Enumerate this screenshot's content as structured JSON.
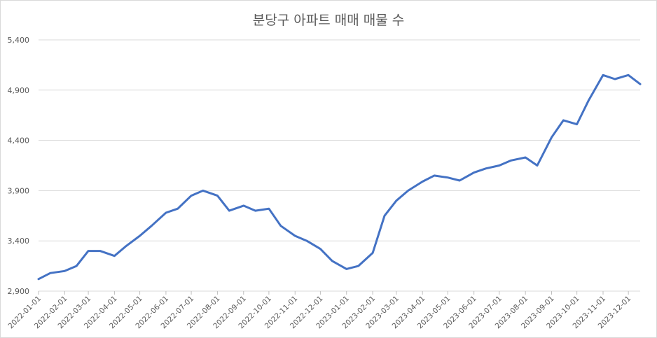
{
  "chart_data": {
    "type": "line",
    "title": "분당구 아파트 매매 매물 수",
    "xlabel": "",
    "ylabel": "",
    "ylim": [
      2900,
      5400
    ],
    "yticks": [
      "2,900",
      "3,400",
      "3,900",
      "4,400",
      "4,900",
      "5,400"
    ],
    "ytick_values": [
      2900,
      3400,
      3900,
      4400,
      4900,
      5400
    ],
    "grid": "horizontal",
    "legend": "none",
    "line_color": "#4472c4",
    "x_range": [
      "2022-01-01",
      "2023-12-15"
    ],
    "xticks": [
      "2022-01-01",
      "2022-02-01",
      "2022-03-01",
      "2022-04-01",
      "2022-05-01",
      "2022-06-01",
      "2022-07-01",
      "2022-08-01",
      "2022-09-01",
      "2022-10-01",
      "2022-11-01",
      "2022-12-01",
      "2023-01-01",
      "2023-02-01",
      "2023-03-01",
      "2023-04-01",
      "2023-05-01",
      "2023-06-01",
      "2023-07-01",
      "2023-08-01",
      "2023-09-01",
      "2023-10-01",
      "2023-11-01",
      "2023-12-01"
    ],
    "series": [
      {
        "x": [
          "2022-01-01",
          "2022-01-15",
          "2022-02-01",
          "2022-02-15",
          "2022-03-01",
          "2022-03-15",
          "2022-04-01",
          "2022-04-15",
          "2022-05-01",
          "2022-05-15",
          "2022-06-01",
          "2022-06-15",
          "2022-07-01",
          "2022-07-15",
          "2022-08-01",
          "2022-08-15",
          "2022-09-01",
          "2022-09-15",
          "2022-10-01",
          "2022-10-15",
          "2022-11-01",
          "2022-11-15",
          "2022-12-01",
          "2022-12-15",
          "2023-01-01",
          "2023-01-15",
          "2023-02-01",
          "2023-02-15",
          "2023-03-01",
          "2023-03-15",
          "2023-04-01",
          "2023-04-15",
          "2023-05-01",
          "2023-05-15",
          "2023-06-01",
          "2023-06-15",
          "2023-07-01",
          "2023-07-15",
          "2023-08-01",
          "2023-08-15",
          "2023-09-01",
          "2023-09-15",
          "2023-10-01",
          "2023-10-15",
          "2023-11-01",
          "2023-11-15",
          "2023-12-01",
          "2023-12-15"
        ],
        "values": [
          3020,
          3080,
          3100,
          3150,
          3300,
          3300,
          3250,
          3350,
          3450,
          3550,
          3680,
          3720,
          3850,
          3900,
          3850,
          3700,
          3750,
          3700,
          3720,
          3550,
          3450,
          3400,
          3320,
          3200,
          3120,
          3150,
          3280,
          3650,
          3800,
          3900,
          3990,
          4050,
          4030,
          4000,
          4080,
          4120,
          4150,
          4200,
          4230,
          4150,
          4430,
          4600,
          4560,
          4800,
          5050,
          5010,
          5050,
          4960
        ]
      }
    ]
  }
}
